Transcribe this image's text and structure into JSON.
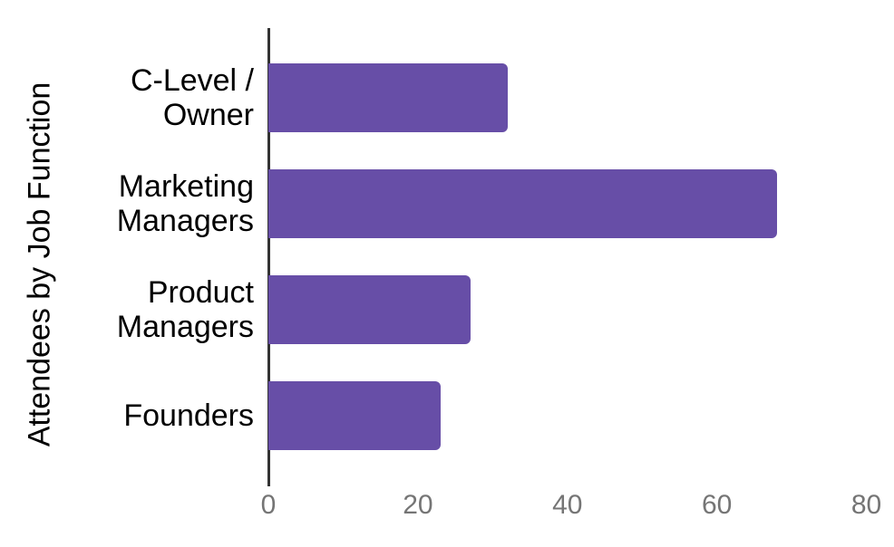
{
  "chart_data": {
    "type": "bar",
    "orientation": "horizontal",
    "title": "",
    "ylabel": "Attendees by Job Function",
    "xlabel": "",
    "categories": [
      "C-Level / Owner",
      "Marketing Managers",
      "Product Managers",
      "Founders"
    ],
    "category_display_lines": [
      [
        "C-Level /",
        "Owner"
      ],
      [
        "Marketing",
        "Managers"
      ],
      [
        "Product",
        "Managers"
      ],
      [
        "Founders"
      ]
    ],
    "values": [
      32,
      68,
      27,
      23
    ],
    "xlim": [
      0,
      80
    ],
    "xticks": [
      "0",
      "20",
      "40",
      "60",
      "80"
    ],
    "xtick_values": [
      0,
      20,
      40,
      60,
      80
    ],
    "grid": false,
    "legend": "none",
    "bar_color": "#674EA7",
    "axis_line_color": "#333333",
    "tick_label_color": "#757575",
    "category_label_color": "#000000",
    "axis_title_color": "#000000",
    "background_color": "#FFFFFF"
  }
}
